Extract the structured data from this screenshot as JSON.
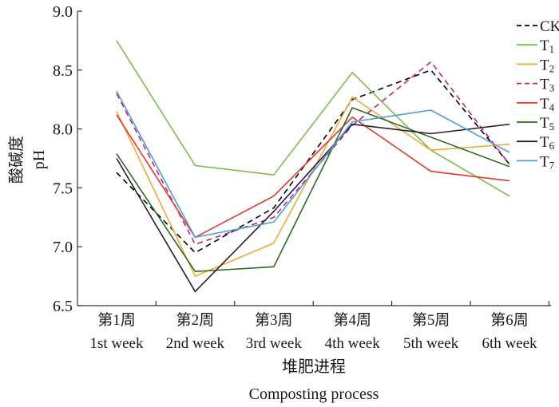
{
  "chart_data": {
    "type": "line",
    "title": "",
    "ylim": [
      6.5,
      9.0
    ],
    "yticks": [
      "6.5",
      "7.0",
      "7.5",
      "8.0",
      "8.5",
      "9.0"
    ],
    "categories": [
      {
        "zh": "第1周",
        "en": "1st week"
      },
      {
        "zh": "第2周",
        "en": "2nd week"
      },
      {
        "zh": "第3周",
        "en": "3rd week"
      },
      {
        "zh": "第4周",
        "en": "4th week"
      },
      {
        "zh": "第5周",
        "en": "5th week"
      },
      {
        "zh": "第6周",
        "en": "6th week"
      }
    ],
    "xlabel": {
      "zh": "堆肥进程",
      "en": "Composting process"
    },
    "ylabel": {
      "zh": "酸碱度",
      "en": "pH"
    },
    "series": [
      {
        "name": "CK",
        "sub": "",
        "color": "#000000",
        "dashed": true,
        "values": [
          7.63,
          6.95,
          7.33,
          8.25,
          8.5,
          7.7
        ]
      },
      {
        "name": "T",
        "sub": "1",
        "color": "#7cbd4d",
        "dashed": false,
        "values": [
          8.75,
          7.69,
          7.61,
          8.48,
          7.82,
          7.43
        ]
      },
      {
        "name": "T",
        "sub": "2",
        "color": "#f2a93b",
        "dashed": false,
        "values": [
          8.15,
          6.75,
          7.03,
          8.27,
          7.82,
          7.87
        ]
      },
      {
        "name": "T",
        "sub": "3",
        "color": "#c2237f",
        "dashed": true,
        "values": [
          8.3,
          7.02,
          7.25,
          8.03,
          8.57,
          7.7
        ]
      },
      {
        "name": "T",
        "sub": "4",
        "color": "#e23a2e",
        "dashed": false,
        "values": [
          8.12,
          7.08,
          7.43,
          8.1,
          7.64,
          7.56
        ]
      },
      {
        "name": "T",
        "sub": "5",
        "color": "#2d6b22",
        "dashed": false,
        "values": [
          7.79,
          6.79,
          6.83,
          8.18,
          7.93,
          7.68
        ]
      },
      {
        "name": "T",
        "sub": "6",
        "color": "#2e1a33",
        "dashed": false,
        "values": [
          7.75,
          6.62,
          7.3,
          8.04,
          7.96,
          8.04
        ]
      },
      {
        "name": "T",
        "sub": "7",
        "color": "#4c9fd8",
        "dashed": false,
        "values": [
          8.32,
          7.08,
          7.21,
          8.06,
          8.16,
          7.8
        ]
      }
    ]
  }
}
